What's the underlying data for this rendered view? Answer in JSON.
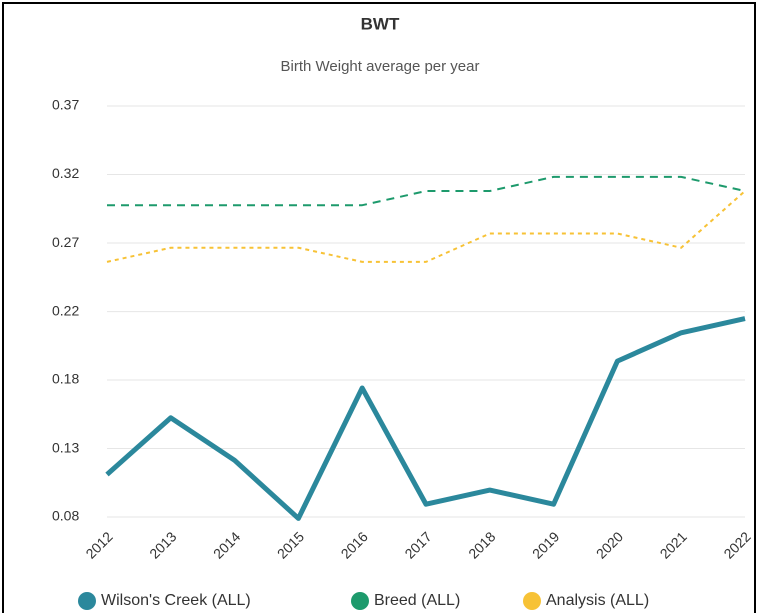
{
  "chart_data": {
    "type": "line",
    "title": "BWT",
    "subtitle": "Birth Weight average per year",
    "categories": [
      "2012",
      "2013",
      "2014",
      "2015",
      "2016",
      "2017",
      "2018",
      "2019",
      "2020",
      "2021",
      "2022"
    ],
    "series": [
      {
        "name": "Wilson's Creek (ALL)",
        "color": "#2b889c",
        "dash": "solid",
        "values": [
          0.11,
          0.15,
          0.12,
          0.079,
          0.171,
          0.089,
          0.099,
          0.089,
          0.19,
          0.21,
          0.22
        ]
      },
      {
        "name": "Breed (ALL)",
        "color": "#1d9a6c",
        "dash": "dash",
        "values": [
          0.3,
          0.3,
          0.3,
          0.3,
          0.3,
          0.31,
          0.31,
          0.32,
          0.32,
          0.32,
          0.31
        ]
      },
      {
        "name": "Analysis (ALL)",
        "color": "#f7c236",
        "dash": "dot",
        "values": [
          0.26,
          0.27,
          0.27,
          0.27,
          0.26,
          0.26,
          0.28,
          0.28,
          0.28,
          0.27,
          0.31
        ]
      }
    ],
    "ylim": [
      0.08,
      0.37
    ],
    "yticks": [
      0.08,
      {
        "value": 0.1283,
        "label": "0.13"
      },
      {
        "value": 0.1767,
        "label": "0.18"
      },
      {
        "value": 0.2249,
        "label": "0.22"
      },
      {
        "value": 0.2733,
        "label": "0.27"
      },
      {
        "value": 0.3217,
        "label": "0.32"
      },
      0.37
    ],
    "grid": true,
    "legend": "bottom"
  }
}
